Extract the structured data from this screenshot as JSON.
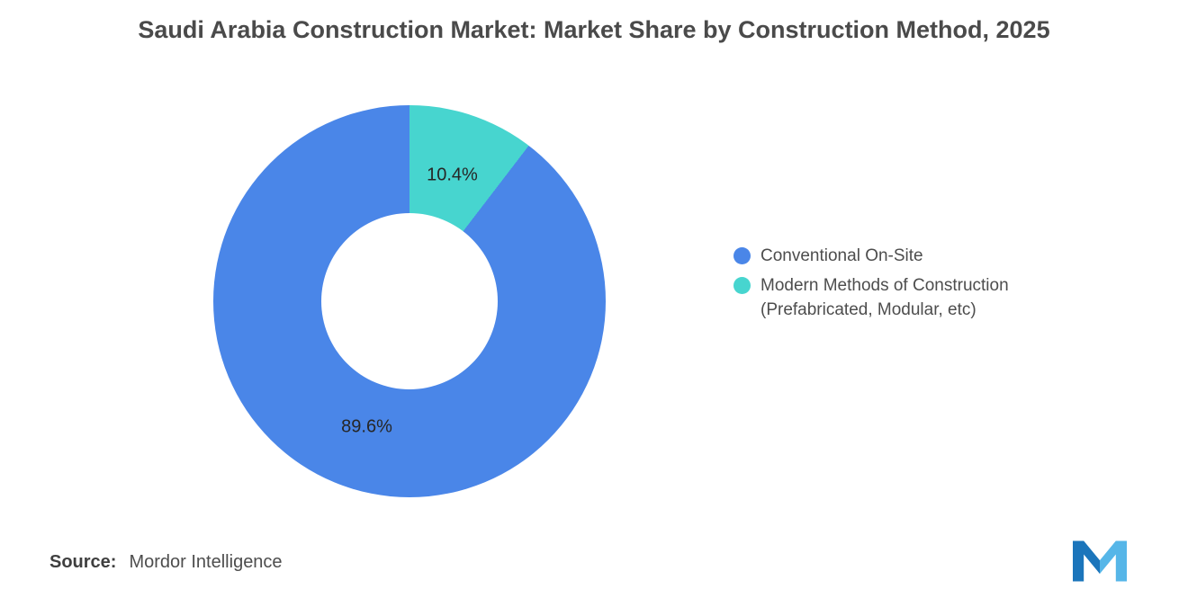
{
  "title": "Saudi Arabia Construction Market: Market Share by Construction Method, 2025",
  "chart_data": {
    "type": "pie",
    "subtype": "donut",
    "title": "Saudi Arabia Construction Market: Market Share by Construction Method, 2025",
    "legend_position": "right",
    "rotation_deg": 37.44,
    "label_radius_px": 148,
    "slices": [
      {
        "label": "Conventional On-Site",
        "value": 89.6,
        "display_value": "89.6%",
        "color": "#4A86E8"
      },
      {
        "label": "Modern Methods of Construction (Prefabricated, Modular, etc)",
        "value": 10.4,
        "display_value": "10.4%",
        "color": "#47D5CF"
      }
    ]
  },
  "legend": {
    "items": [
      {
        "label": "Conventional On-Site",
        "color": "#4A86E8"
      },
      {
        "label": "Modern Methods of Construction",
        "sublabel": "(Prefabricated, Modular, etc)",
        "color": "#47D5CF"
      }
    ]
  },
  "source": {
    "label": "Source:",
    "value": "Mordor Intelligence"
  },
  "logo": {
    "name": "mordor-intelligence-logo",
    "colors": {
      "left": "#1B75BB",
      "right": "#56B6E8"
    }
  }
}
